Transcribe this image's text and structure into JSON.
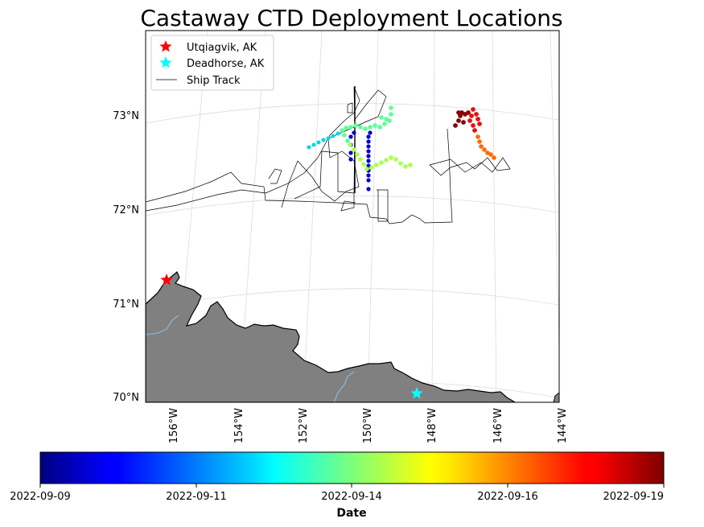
{
  "title": "Castaway CTD Deployment Locations",
  "legend": {
    "items": [
      {
        "label": "Utqiagvik, AK",
        "color": "#ff0000",
        "marker": "star-icon"
      },
      {
        "label": "Deadhorse, AK",
        "color": "#00ffff",
        "marker": "star-icon"
      },
      {
        "label": "Ship Track",
        "color": "#000000",
        "marker": "line"
      }
    ]
  },
  "axes": {
    "lat_ticks": [
      "73°N",
      "72°N",
      "71°N",
      "70°N"
    ],
    "lon_ticks": [
      "156°W",
      "154°W",
      "152°W",
      "150°W",
      "148°W",
      "146°W",
      "144°W"
    ]
  },
  "colorbar": {
    "label": "Date",
    "colormap": "jet",
    "ticks": [
      "2022-09-09",
      "2022-09-11",
      "2022-09-14",
      "2022-09-16",
      "2022-09-19"
    ]
  },
  "colors": {
    "land": "#808080",
    "river": "#8fb0e0",
    "grid": "#dcdcdc"
  }
}
